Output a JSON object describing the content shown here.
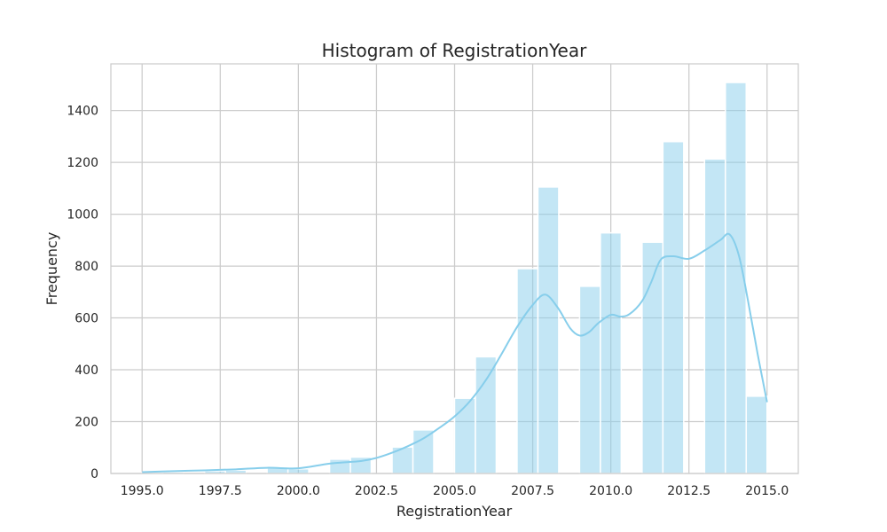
{
  "chart_data": {
    "type": "bar",
    "title": "Histogram of RegistrationYear",
    "xlabel": "RegistrationYear",
    "ylabel": "Frequency",
    "xlim": [
      1994,
      2016
    ],
    "ylim": [
      0,
      1580
    ],
    "x_ticks": [
      1995.0,
      1997.5,
      2000.0,
      2002.5,
      2005.0,
      2007.5,
      2010.0,
      2012.5,
      2015.0
    ],
    "x_tick_labels": [
      "1995.0",
      "1997.5",
      "2000.0",
      "2002.5",
      "2005.0",
      "2007.5",
      "2010.0",
      "2012.5",
      "2015.0"
    ],
    "y_ticks": [
      0,
      200,
      400,
      600,
      800,
      1000,
      1200,
      1400
    ],
    "y_tick_labels": [
      "0",
      "200",
      "400",
      "600",
      "800",
      "1000",
      "1200",
      "1400"
    ],
    "grid": true,
    "bin_edges": [
      1995.0,
      1995.667,
      1996.333,
      1997.0,
      1997.667,
      1998.333,
      1999.0,
      1999.667,
      2000.333,
      2001.0,
      2001.667,
      2002.333,
      2003.0,
      2003.667,
      2004.333,
      2005.0,
      2005.667,
      2006.333,
      2007.0,
      2007.667,
      2008.333,
      2009.0,
      2009.667,
      2010.333,
      2011.0,
      2011.667,
      2012.333,
      2013.0,
      2013.667,
      2014.333,
      2015.0
    ],
    "counts": [
      3,
      6,
      0,
      10,
      13,
      0,
      22,
      18,
      0,
      55,
      63,
      0,
      102,
      168,
      0,
      290,
      450,
      0,
      790,
      1105,
      0,
      722,
      928,
      0,
      892,
      1280,
      0,
      1213,
      1508,
      298
    ],
    "kde": {
      "x": [
        1995.0,
        1996.0,
        1997.0,
        1998.0,
        1999.0,
        2000.0,
        2001.0,
        2002.0,
        2002.5,
        2003.0,
        2003.5,
        2004.0,
        2004.5,
        2005.0,
        2005.5,
        2006.0,
        2006.5,
        2007.0,
        2007.5,
        2007.9,
        2008.3,
        2008.7,
        2009.0,
        2009.3,
        2009.6,
        2010.0,
        2010.3,
        2010.6,
        2011.0,
        2011.3,
        2011.6,
        2012.0,
        2012.5,
        2013.0,
        2013.5,
        2013.8,
        2014.1,
        2014.4,
        2014.7,
        2015.0
      ],
      "y": [
        5,
        9,
        12,
        16,
        22,
        20,
        38,
        48,
        60,
        80,
        105,
        135,
        175,
        220,
        280,
        360,
        460,
        565,
        650,
        690,
        640,
        560,
        532,
        545,
        580,
        612,
        605,
        615,
        665,
        740,
        825,
        838,
        828,
        860,
        900,
        922,
        840,
        660,
        460,
        275
      ]
    },
    "colors": {
      "bar": "#87ceeb",
      "line": "#87ceeb"
    }
  }
}
